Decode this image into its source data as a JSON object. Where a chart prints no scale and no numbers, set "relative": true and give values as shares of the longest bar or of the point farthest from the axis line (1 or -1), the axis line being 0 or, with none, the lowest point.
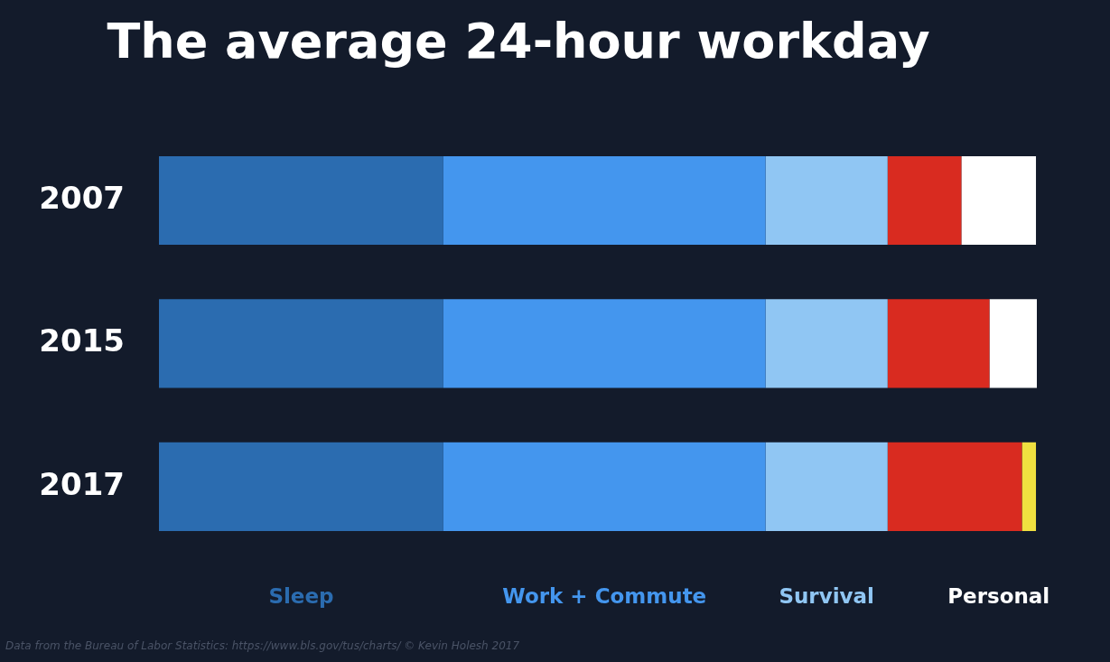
{
  "chart_data": {
    "type": "bar",
    "orientation": "horizontal",
    "stacked": true,
    "relative": true,
    "title": "The average 24-hour workday",
    "categories": [
      "2007",
      "2015",
      "2017"
    ],
    "series": [
      {
        "name": "Sleep",
        "color": "#2b6cb0",
        "values": [
          0.324,
          0.324,
          0.324
        ]
      },
      {
        "name": "Work + Commute",
        "color": "#4496ee",
        "values": [
          0.367,
          0.367,
          0.367
        ]
      },
      {
        "name": "Survival",
        "color": "#90c6f3",
        "values": [
          0.139,
          0.139,
          0.139
        ]
      },
      {
        "color": "#d92b20",
        "values": [
          0.084,
          0.116,
          0.153
        ]
      },
      {
        "name": "Personal",
        "color": "#ffffff",
        "values": [
          0.085,
          0.054,
          null
        ]
      },
      {
        "color": "#f0e040",
        "values": [
          null,
          null,
          0.016
        ]
      }
    ],
    "legend": false,
    "annotations": [
      "Data from the Bureau of Labor Statistics: https://www.bls.gov/tus/charts/ © Kevin Holesh 2017"
    ]
  }
}
